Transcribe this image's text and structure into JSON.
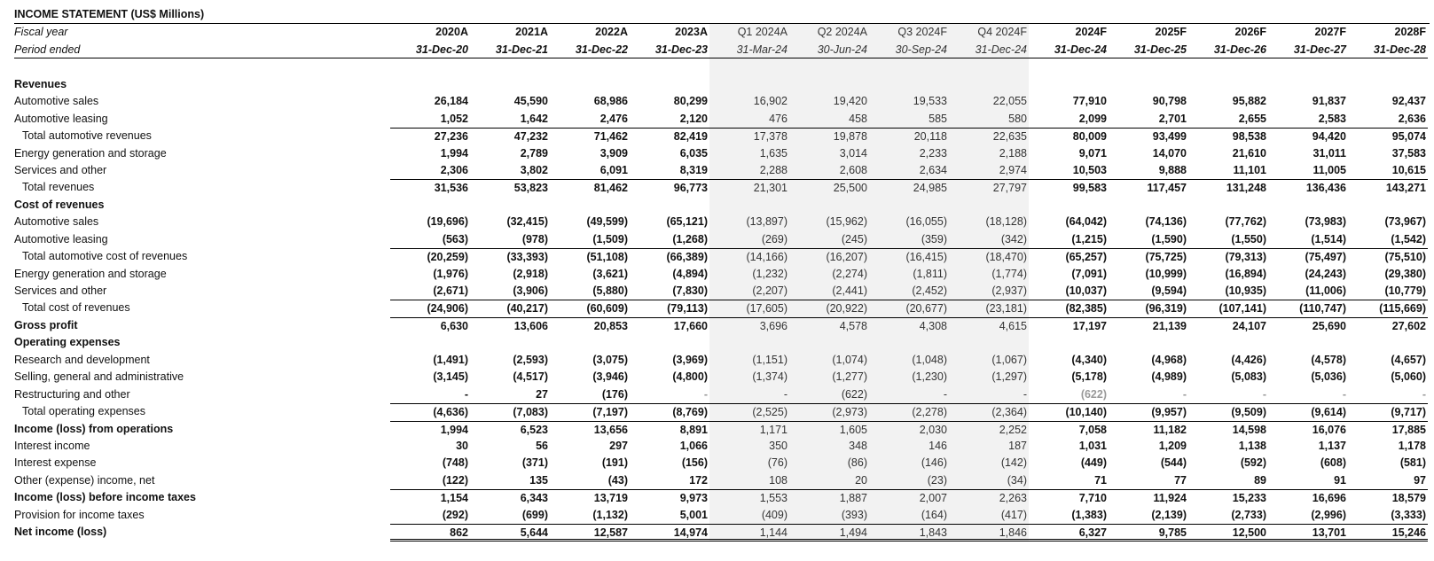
{
  "title": "INCOME STATEMENT (US$ Millions)",
  "header": {
    "fiscal_year_label": "Fiscal year",
    "period_label": "Period ended",
    "fiscal_years": [
      "2020A",
      "2021A",
      "2022A",
      "2023A",
      "Q1 2024A",
      "Q2 2024A",
      "Q3 2024F",
      "Q4 2024F",
      "2024F",
      "2025F",
      "2026F",
      "2027F",
      "2028F"
    ],
    "periods": [
      "31-Dec-20",
      "31-Dec-21",
      "31-Dec-22",
      "31-Dec-23",
      "31-Mar-24",
      "30-Jun-24",
      "30-Sep-24",
      "31-Dec-24",
      "31-Dec-24",
      "31-Dec-25",
      "31-Dec-26",
      "31-Dec-27",
      "31-Dec-28"
    ]
  },
  "rows": [
    {
      "label": "Revenues",
      "type": "section",
      "values": []
    },
    {
      "label": "Automotive sales",
      "values": [
        "26,184",
        "45,590",
        "68,986",
        "80,299",
        "16,902",
        "19,420",
        "19,533",
        "22,055",
        "77,910",
        "90,798",
        "95,882",
        "91,837",
        "92,437"
      ]
    },
    {
      "label": "Automotive leasing",
      "values": [
        "1,052",
        "1,642",
        "2,476",
        "2,120",
        "476",
        "458",
        "585",
        "580",
        "2,099",
        "2,701",
        "2,655",
        "2,583",
        "2,636"
      ]
    },
    {
      "label": "Total automotive revenues",
      "type": "subtotal",
      "values": [
        "27,236",
        "47,232",
        "71,462",
        "82,419",
        "17,378",
        "19,878",
        "20,118",
        "22,635",
        "80,009",
        "93,499",
        "98,538",
        "94,420",
        "95,074"
      ]
    },
    {
      "label": "Energy generation and storage",
      "values": [
        "1,994",
        "2,789",
        "3,909",
        "6,035",
        "1,635",
        "3,014",
        "2,233",
        "2,188",
        "9,071",
        "14,070",
        "21,610",
        "31,011",
        "37,583"
      ]
    },
    {
      "label": "Services and other",
      "values": [
        "2,306",
        "3,802",
        "6,091",
        "8,319",
        "2,288",
        "2,608",
        "2,634",
        "2,974",
        "10,503",
        "9,888",
        "11,101",
        "11,005",
        "10,615"
      ]
    },
    {
      "label": "Total revenues",
      "type": "subtotal",
      "values": [
        "31,536",
        "53,823",
        "81,462",
        "96,773",
        "21,301",
        "25,500",
        "24,985",
        "27,797",
        "99,583",
        "117,457",
        "131,248",
        "136,436",
        "143,271"
      ]
    },
    {
      "label": "Cost of revenues",
      "type": "section",
      "values": []
    },
    {
      "label": "Automotive sales",
      "values": [
        "(19,696)",
        "(32,415)",
        "(49,599)",
        "(65,121)",
        "(13,897)",
        "(15,962)",
        "(16,055)",
        "(18,128)",
        "(64,042)",
        "(74,136)",
        "(77,762)",
        "(73,983)",
        "(73,967)"
      ]
    },
    {
      "label": "Automotive leasing",
      "values": [
        "(563)",
        "(978)",
        "(1,509)",
        "(1,268)",
        "(269)",
        "(245)",
        "(359)",
        "(342)",
        "(1,215)",
        "(1,590)",
        "(1,550)",
        "(1,514)",
        "(1,542)"
      ]
    },
    {
      "label": "Total automotive cost of revenues",
      "type": "subtotal",
      "values": [
        "(20,259)",
        "(33,393)",
        "(51,108)",
        "(66,389)",
        "(14,166)",
        "(16,207)",
        "(16,415)",
        "(18,470)",
        "(65,257)",
        "(75,725)",
        "(79,313)",
        "(75,497)",
        "(75,510)"
      ]
    },
    {
      "label": "Energy generation and storage",
      "values": [
        "(1,976)",
        "(2,918)",
        "(3,621)",
        "(4,894)",
        "(1,232)",
        "(2,274)",
        "(1,811)",
        "(1,774)",
        "(7,091)",
        "(10,999)",
        "(16,894)",
        "(24,243)",
        "(29,380)"
      ]
    },
    {
      "label": "Services and other",
      "values": [
        "(2,671)",
        "(3,906)",
        "(5,880)",
        "(7,830)",
        "(2,207)",
        "(2,441)",
        "(2,452)",
        "(2,937)",
        "(10,037)",
        "(9,594)",
        "(10,935)",
        "(11,006)",
        "(10,779)"
      ]
    },
    {
      "label": "Total cost of revenues",
      "type": "subtotal",
      "values": [
        "(24,906)",
        "(40,217)",
        "(60,609)",
        "(79,113)",
        "(17,605)",
        "(20,922)",
        "(20,677)",
        "(23,181)",
        "(82,385)",
        "(96,319)",
        "(107,141)",
        "(110,747)",
        "(115,669)"
      ]
    },
    {
      "label": "Gross profit",
      "type": "total",
      "values": [
        "6,630",
        "13,606",
        "20,853",
        "17,660",
        "3,696",
        "4,578",
        "4,308",
        "4,615",
        "17,197",
        "21,139",
        "24,107",
        "25,690",
        "27,602"
      ]
    },
    {
      "label": "Operating expenses",
      "type": "section",
      "values": []
    },
    {
      "label": "Research and development",
      "values": [
        "(1,491)",
        "(2,593)",
        "(3,075)",
        "(3,969)",
        "(1,151)",
        "(1,074)",
        "(1,048)",
        "(1,067)",
        "(4,340)",
        "(4,968)",
        "(4,426)",
        "(4,578)",
        "(4,657)"
      ]
    },
    {
      "label": "Selling, general and administrative",
      "values": [
        "(3,145)",
        "(4,517)",
        "(3,946)",
        "(4,800)",
        "(1,374)",
        "(1,277)",
        "(1,230)",
        "(1,297)",
        "(5,178)",
        "(4,989)",
        "(5,083)",
        "(5,036)",
        "(5,060)"
      ]
    },
    {
      "label": "Restructuring and other",
      "values": [
        "-",
        "27",
        "(176)",
        "-",
        "-",
        "(622)",
        "-",
        "-",
        "(622)",
        "-",
        "-",
        "-",
        "-"
      ],
      "gray": [
        3,
        8,
        9,
        10,
        11,
        12
      ]
    },
    {
      "label": "Total operating expenses",
      "type": "subtotal",
      "values": [
        "(4,636)",
        "(7,083)",
        "(7,197)",
        "(8,769)",
        "(2,525)",
        "(2,973)",
        "(2,278)",
        "(2,364)",
        "(10,140)",
        "(9,957)",
        "(9,509)",
        "(9,614)",
        "(9,717)"
      ]
    },
    {
      "label": "Income (loss) from operations",
      "type": "total",
      "values": [
        "1,994",
        "6,523",
        "13,656",
        "8,891",
        "1,171",
        "1,605",
        "2,030",
        "2,252",
        "7,058",
        "11,182",
        "14,598",
        "16,076",
        "17,885"
      ]
    },
    {
      "label": "Interest income",
      "values": [
        "30",
        "56",
        "297",
        "1,066",
        "350",
        "348",
        "146",
        "187",
        "1,031",
        "1,209",
        "1,138",
        "1,137",
        "1,178"
      ]
    },
    {
      "label": "Interest expense",
      "values": [
        "(748)",
        "(371)",
        "(191)",
        "(156)",
        "(76)",
        "(86)",
        "(146)",
        "(142)",
        "(449)",
        "(544)",
        "(592)",
        "(608)",
        "(581)"
      ]
    },
    {
      "label": "Other (expense) income, net",
      "values": [
        "(122)",
        "135",
        "(43)",
        "172",
        "108",
        "20",
        "(23)",
        "(34)",
        "71",
        "77",
        "89",
        "91",
        "97"
      ]
    },
    {
      "label": "Income (loss) before income taxes",
      "type": "total",
      "values": [
        "1,154",
        "6,343",
        "13,719",
        "9,973",
        "1,553",
        "1,887",
        "2,007",
        "2,263",
        "7,710",
        "11,924",
        "15,233",
        "16,696",
        "18,579"
      ]
    },
    {
      "label": "Provision for income taxes",
      "values": [
        "(292)",
        "(699)",
        "(1,132)",
        "5,001",
        "(409)",
        "(393)",
        "(164)",
        "(417)",
        "(1,383)",
        "(2,139)",
        "(2,733)",
        "(2,996)",
        "(3,333)"
      ]
    },
    {
      "label": "Net income (loss)",
      "type": "net",
      "values": [
        "862",
        "5,644",
        "12,587",
        "14,974",
        "1,144",
        "1,494",
        "1,843",
        "1,846",
        "6,327",
        "9,785",
        "12,500",
        "13,701",
        "15,246"
      ]
    }
  ],
  "colors": {
    "quarter_shade": "#f2f2f2",
    "muted_text": "#999999"
  }
}
